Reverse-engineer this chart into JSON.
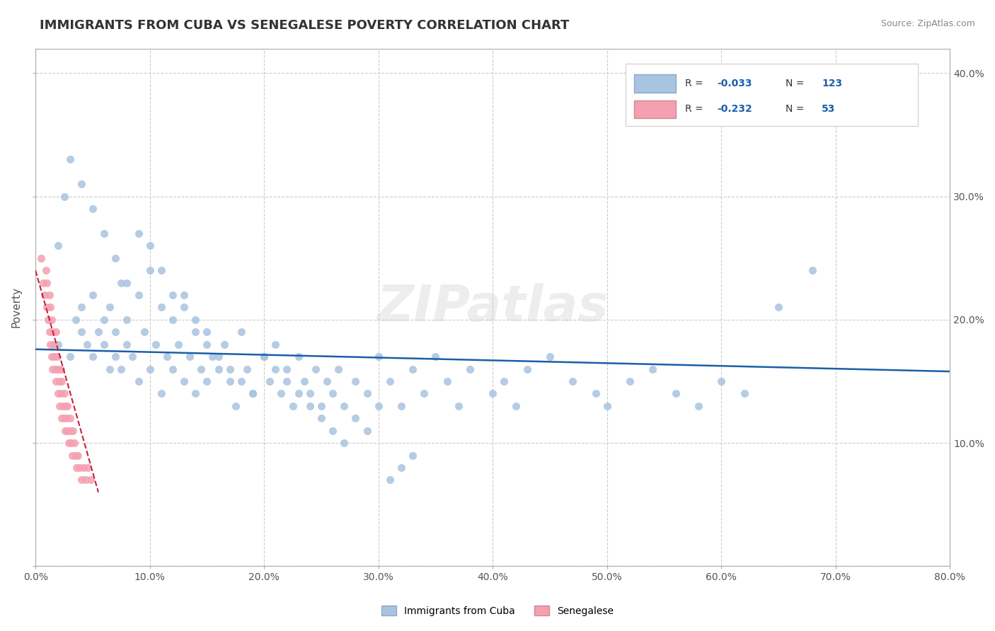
{
  "title": "IMMIGRANTS FROM CUBA VS SENEGALESE POVERTY CORRELATION CHART",
  "source_text": "Source: ZipAtlas.com",
  "xlabel": "",
  "ylabel": "Poverty",
  "xlim": [
    0.0,
    0.8
  ],
  "ylim": [
    0.0,
    0.42
  ],
  "xticks": [
    0.0,
    0.1,
    0.2,
    0.3,
    0.4,
    0.5,
    0.6,
    0.7,
    0.8
  ],
  "yticks": [
    0.0,
    0.1,
    0.2,
    0.3,
    0.4
  ],
  "ytick_labels": [
    "",
    "10.0%",
    "20.0%",
    "30.0%",
    "40.0%"
  ],
  "xtick_labels": [
    "0.0%",
    "",
    "",
    "",
    "",
    "",
    "",
    "",
    "80.0%"
  ],
  "legend_blue_label": "R = -0.033  N = 123",
  "legend_pink_label": "R = -0.232  N =  53",
  "blue_color": "#a8c4e0",
  "pink_color": "#f4a0b0",
  "trendline_blue_color": "#1a5fa8",
  "trendline_pink_color": "#c8203a",
  "watermark": "ZIPatlas",
  "watermark_color": "#cccccc",
  "background_color": "#ffffff",
  "grid_color": "#cccccc",
  "blue_scatter_x": [
    0.02,
    0.03,
    0.035,
    0.04,
    0.04,
    0.045,
    0.05,
    0.05,
    0.055,
    0.06,
    0.06,
    0.065,
    0.065,
    0.07,
    0.07,
    0.075,
    0.075,
    0.08,
    0.08,
    0.085,
    0.09,
    0.09,
    0.095,
    0.1,
    0.1,
    0.105,
    0.11,
    0.11,
    0.115,
    0.12,
    0.12,
    0.125,
    0.13,
    0.13,
    0.135,
    0.14,
    0.14,
    0.145,
    0.15,
    0.15,
    0.155,
    0.16,
    0.165,
    0.17,
    0.175,
    0.18,
    0.185,
    0.19,
    0.2,
    0.205,
    0.21,
    0.215,
    0.22,
    0.225,
    0.23,
    0.235,
    0.24,
    0.245,
    0.25,
    0.255,
    0.26,
    0.265,
    0.27,
    0.28,
    0.29,
    0.3,
    0.31,
    0.32,
    0.33,
    0.34,
    0.35,
    0.36,
    0.37,
    0.38,
    0.4,
    0.41,
    0.42,
    0.43,
    0.45,
    0.47,
    0.49,
    0.5,
    0.52,
    0.54,
    0.56,
    0.58,
    0.6,
    0.62,
    0.65,
    0.68,
    0.02,
    0.025,
    0.03,
    0.04,
    0.05,
    0.06,
    0.07,
    0.08,
    0.09,
    0.1,
    0.11,
    0.12,
    0.13,
    0.14,
    0.15,
    0.16,
    0.17,
    0.18,
    0.19,
    0.2,
    0.21,
    0.22,
    0.23,
    0.24,
    0.25,
    0.26,
    0.27,
    0.28,
    0.29,
    0.3,
    0.31,
    0.32,
    0.33
  ],
  "blue_scatter_y": [
    0.18,
    0.17,
    0.2,
    0.19,
    0.21,
    0.18,
    0.22,
    0.17,
    0.19,
    0.2,
    0.18,
    0.16,
    0.21,
    0.17,
    0.19,
    0.23,
    0.16,
    0.18,
    0.2,
    0.17,
    0.22,
    0.15,
    0.19,
    0.24,
    0.16,
    0.18,
    0.21,
    0.14,
    0.17,
    0.2,
    0.16,
    0.18,
    0.15,
    0.22,
    0.17,
    0.2,
    0.14,
    0.16,
    0.19,
    0.15,
    0.17,
    0.16,
    0.18,
    0.15,
    0.13,
    0.19,
    0.16,
    0.14,
    0.17,
    0.15,
    0.18,
    0.14,
    0.16,
    0.13,
    0.17,
    0.15,
    0.14,
    0.16,
    0.13,
    0.15,
    0.14,
    0.16,
    0.13,
    0.15,
    0.14,
    0.17,
    0.15,
    0.13,
    0.16,
    0.14,
    0.17,
    0.15,
    0.13,
    0.16,
    0.14,
    0.15,
    0.13,
    0.16,
    0.17,
    0.15,
    0.14,
    0.13,
    0.15,
    0.16,
    0.14,
    0.13,
    0.15,
    0.14,
    0.21,
    0.24,
    0.26,
    0.3,
    0.33,
    0.31,
    0.29,
    0.27,
    0.25,
    0.23,
    0.27,
    0.26,
    0.24,
    0.22,
    0.21,
    0.19,
    0.18,
    0.17,
    0.16,
    0.15,
    0.14,
    0.17,
    0.16,
    0.15,
    0.14,
    0.13,
    0.12,
    0.11,
    0.1,
    0.12,
    0.11,
    0.13,
    0.07,
    0.08,
    0.09
  ],
  "pink_scatter_x": [
    0.005,
    0.007,
    0.008,
    0.009,
    0.01,
    0.01,
    0.011,
    0.012,
    0.012,
    0.013,
    0.013,
    0.014,
    0.014,
    0.015,
    0.015,
    0.016,
    0.016,
    0.017,
    0.018,
    0.018,
    0.019,
    0.02,
    0.02,
    0.021,
    0.021,
    0.022,
    0.022,
    0.023,
    0.023,
    0.024,
    0.025,
    0.025,
    0.026,
    0.026,
    0.027,
    0.028,
    0.028,
    0.029,
    0.03,
    0.03,
    0.031,
    0.032,
    0.033,
    0.034,
    0.035,
    0.036,
    0.037,
    0.038,
    0.04,
    0.042,
    0.044,
    0.046,
    0.048
  ],
  "pink_scatter_y": [
    0.25,
    0.23,
    0.22,
    0.24,
    0.21,
    0.23,
    0.2,
    0.22,
    0.19,
    0.21,
    0.18,
    0.2,
    0.17,
    0.19,
    0.16,
    0.18,
    0.17,
    0.16,
    0.19,
    0.15,
    0.17,
    0.14,
    0.16,
    0.15,
    0.13,
    0.14,
    0.16,
    0.12,
    0.15,
    0.13,
    0.14,
    0.12,
    0.13,
    0.11,
    0.12,
    0.11,
    0.13,
    0.1,
    0.12,
    0.11,
    0.1,
    0.09,
    0.11,
    0.1,
    0.09,
    0.08,
    0.09,
    0.08,
    0.07,
    0.08,
    0.07,
    0.08,
    0.07
  ],
  "blue_trend_x": [
    0.0,
    0.8
  ],
  "blue_trend_y": [
    0.176,
    0.158
  ],
  "pink_trend_x": [
    0.0,
    0.055
  ],
  "pink_trend_y": [
    0.24,
    0.06
  ]
}
